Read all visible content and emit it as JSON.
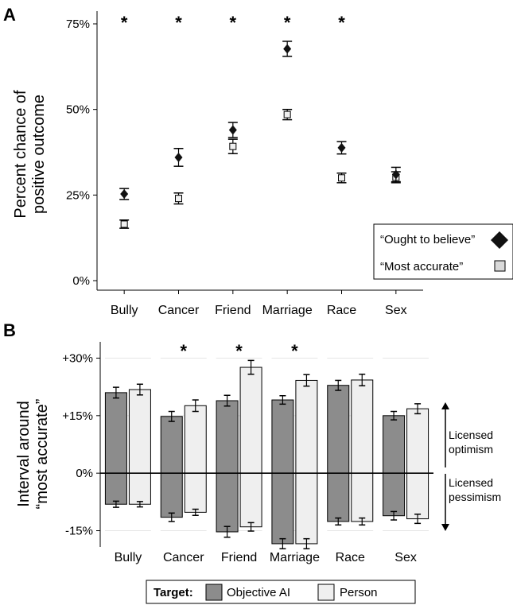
{
  "colors": {
    "ought_marker": "#111111",
    "accurate_marker": "#f0f0f0",
    "objective_ai_bar": "#8c8c8c",
    "person_bar": "#efefef",
    "gridline": "#e6e6e6",
    "axis": "#000000"
  },
  "chart_data": [
    {
      "panel_label": "A",
      "type": "scatter",
      "ylabel_lines": [
        "Percent chance of",
        "positive outcome"
      ],
      "ylim": [
        0,
        75
      ],
      "yticks": [
        0,
        25,
        50,
        75
      ],
      "ytick_labels": [
        "0%",
        "25%",
        "50%",
        "75%"
      ],
      "categories": [
        "Bully",
        "Cancer",
        "Friend",
        "Marriage",
        "Race",
        "Sex"
      ],
      "significance": [
        "*",
        "*",
        "*",
        "*",
        "*",
        ""
      ],
      "grid": false,
      "legend_position": "bottom-right",
      "series": [
        {
          "name": "“Ought to believe”",
          "marker": "diamond",
          "values": [
            25.3,
            36.0,
            44.0,
            67.7,
            38.8,
            31.0
          ],
          "error": [
            1.6,
            2.6,
            2.2,
            2.2,
            1.8,
            2.1
          ]
        },
        {
          "name": "“Most accurate”",
          "marker": "square",
          "values": [
            16.5,
            24.0,
            39.2,
            48.5,
            30.0,
            30.2
          ],
          "error": [
            1.2,
            1.6,
            2.1,
            1.5,
            1.4,
            1.6
          ]
        }
      ]
    },
    {
      "panel_label": "B",
      "type": "bar",
      "ylabel_lines": [
        "Interval around",
        "“most accurate”"
      ],
      "ylim": [
        -18,
        33
      ],
      "yticks": [
        -15,
        0,
        15,
        30
      ],
      "ytick_labels": [
        "-15%",
        "0%",
        "+15%",
        "+30%"
      ],
      "categories": [
        "Bully",
        "Cancer",
        "Friend",
        "Marriage",
        "Race",
        "Sex"
      ],
      "significance": [
        "",
        "*",
        "*",
        "*",
        "",
        ""
      ],
      "grid": true,
      "legend_position": "bottom",
      "legend_title": "Target:",
      "annotations": {
        "upper": [
          "Licensed",
          "optimism"
        ],
        "lower": [
          "Licensed",
          "pessimism"
        ]
      },
      "series": [
        {
          "name": "Objective AI",
          "upper": [
            21.0,
            14.8,
            18.9,
            19.1,
            22.9,
            15.0
          ],
          "upper_error": [
            1.4,
            1.3,
            1.4,
            1.1,
            1.3,
            1.1
          ],
          "lower": [
            -8.1,
            -11.5,
            -15.3,
            -18.4,
            -12.6,
            -11.1
          ],
          "lower_error": [
            0.8,
            1.1,
            1.4,
            1.3,
            0.9,
            1.1
          ]
        },
        {
          "name": "Person",
          "upper": [
            21.8,
            17.6,
            27.6,
            24.2,
            24.3,
            16.8
          ],
          "upper_error": [
            1.4,
            1.5,
            1.8,
            1.5,
            1.5,
            1.3
          ],
          "lower": [
            -8.1,
            -10.2,
            -14.0,
            -18.4,
            -12.6,
            -11.9
          ],
          "lower_error": [
            0.7,
            0.8,
            1.1,
            1.3,
            0.9,
            1.2
          ]
        }
      ]
    }
  ]
}
